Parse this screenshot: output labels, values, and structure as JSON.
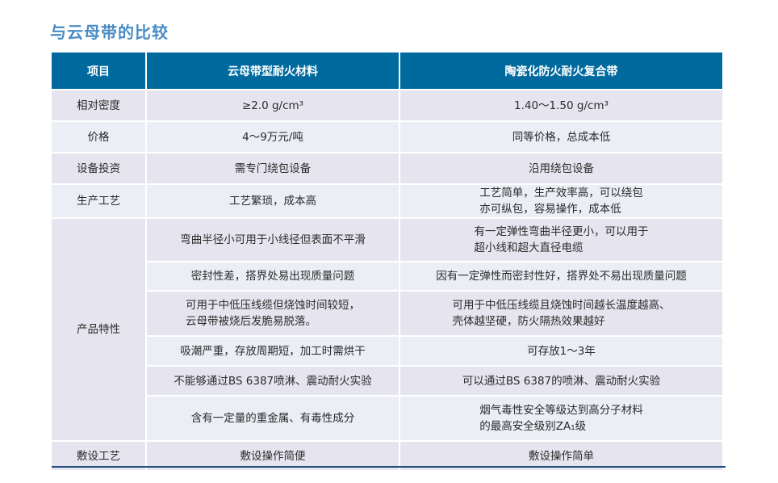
{
  "title": "与云母带的比较",
  "colors": {
    "header": "#006a9f",
    "title": "#4a8cc4",
    "row_a": "#e6e5ef",
    "row_b": "#eceef5"
  },
  "headers": [
    "项目",
    "云母带型耐火材料",
    "陶瓷化防火耐火复合带"
  ],
  "rows": [
    {
      "item": "相对密度",
      "mica": "≥2.0 g/cm³",
      "ceramic": "1.40～1.50 g/cm³"
    },
    {
      "item": "价格",
      "mica": "4～9万元/吨",
      "ceramic": "同等价格，总成本低"
    },
    {
      "item": "设备投资",
      "mica": "需专门绕包设备",
      "ceramic": "沿用绕包设备"
    },
    {
      "item": "生产工艺",
      "mica": "工艺繁琐，成本高",
      "ceramic": [
        "工艺简单，生产效率高，可以绕包",
        "亦可纵包，容易操作，成本低"
      ]
    }
  ],
  "product_group": {
    "item": "产品特性",
    "rows": [
      {
        "mica": "弯曲半径小可用于小线径但表面不平滑",
        "ceramic": [
          "有一定弹性弯曲半径更小，可以用于",
          "超小线和超大直径电缆"
        ]
      },
      {
        "mica": "密封性差，搭界处易出现质量问题",
        "ceramic": "因有一定弹性而密封性好，搭界处不易出现质量问题"
      },
      {
        "mica": [
          "可用于中低压线缆但烧蚀时间较短，",
          "云母带被烧后发脆易脱落。"
        ],
        "ceramic": [
          "可用于中低压线缆且烧蚀时间越长温度越高、",
          "壳体越坚硬，防火隔热效果越好"
        ]
      },
      {
        "mica": "吸潮严重，存放周期短，加工时需烘干",
        "ceramic": "可存放1～3年"
      },
      {
        "mica": "不能够通过BS 6387喷淋、震动耐火实验",
        "ceramic": "可以通过BS 6387的喷淋、震动耐火实验"
      },
      {
        "mica": "含有一定量的重金属、有毒性成分",
        "ceramic": [
          "烟气毒性安全等级达到高分子材料",
          "的最高安全级别ZA₁级"
        ]
      }
    ]
  },
  "last_row": {
    "item": "敷设工艺",
    "mica": "敷设操作简便",
    "ceramic": "敷设操作简单"
  }
}
